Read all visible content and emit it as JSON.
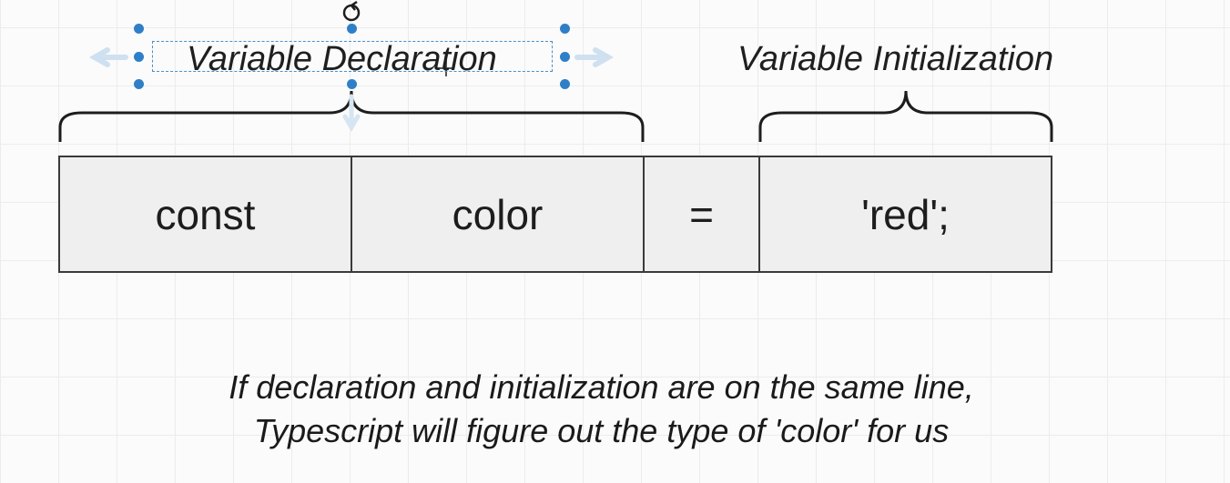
{
  "labels": {
    "declaration": "Variable Declaration",
    "initialization": "Variable Initialization"
  },
  "tokens": [
    {
      "text": "const"
    },
    {
      "text": "color"
    },
    {
      "text": "="
    },
    {
      "text": "'red';"
    }
  ],
  "note": {
    "line1": "If declaration and initialization are on the same line,",
    "line2": "Typescript will figure out the type of 'color' for us"
  },
  "colors": {
    "cell_fill": "#efefef",
    "border": "#3a3a3a",
    "selection": "#2f7fc8"
  }
}
